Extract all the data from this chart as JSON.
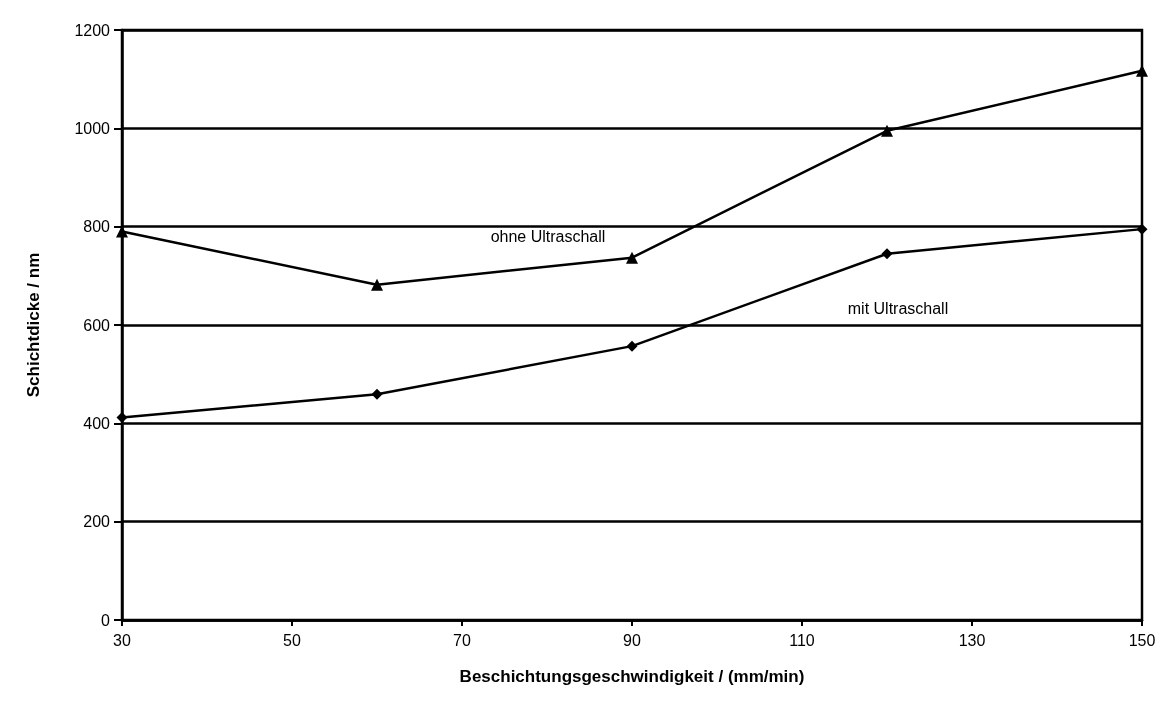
{
  "chart_data": {
    "type": "line",
    "xlabel": "Beschichtungsgeschwindigkeit / (mm/min)",
    "ylabel": "Schichtdicke / nm",
    "x": [
      30,
      60,
      90,
      120,
      150
    ],
    "series": [
      {
        "name": "ohne Ultraschall",
        "color": "#000000",
        "marker": "triangle",
        "values": [
          790,
          682,
          737,
          995,
          1117
        ]
      },
      {
        "name": "mit Ultraschall",
        "color": "#000000",
        "marker": "diamond",
        "values": [
          412,
          459,
          557,
          745,
          795
        ]
      }
    ],
    "xlim": [
      30,
      150
    ],
    "xticks": [
      30,
      50,
      70,
      90,
      110,
      130,
      150
    ],
    "ylim": [
      0,
      1200
    ],
    "yticks": [
      0,
      200,
      400,
      600,
      800,
      1000,
      1200
    ],
    "grid": "y",
    "line_style": "solid"
  }
}
